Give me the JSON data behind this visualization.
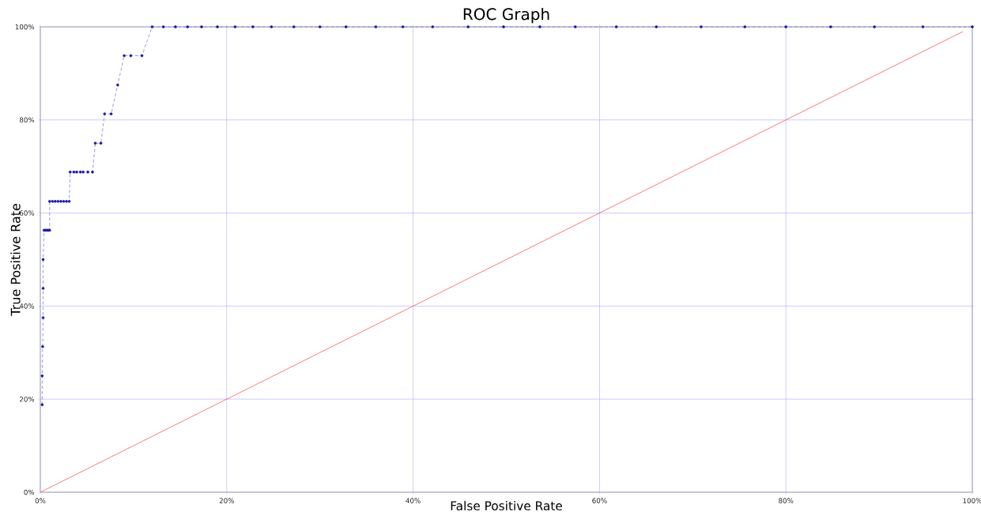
{
  "chart_data": {
    "type": "line",
    "title": "ROC Graph",
    "xlabel": "False Positive Rate",
    "ylabel": "True Positive Rate",
    "xlim": [
      0,
      100
    ],
    "ylim": [
      0,
      100
    ],
    "xticks": [
      {
        "value": 0,
        "label": "0%"
      },
      {
        "value": 20,
        "label": "20%"
      },
      {
        "value": 40,
        "label": "40%"
      },
      {
        "value": 60,
        "label": "60%"
      },
      {
        "value": 80,
        "label": "80%"
      },
      {
        "value": 100,
        "label": "100%"
      }
    ],
    "yticks": [
      {
        "value": 0,
        "label": "0%"
      },
      {
        "value": 20,
        "label": "20%"
      },
      {
        "value": 40,
        "label": "40%"
      },
      {
        "value": 60,
        "label": "60%"
      },
      {
        "value": 80,
        "label": "80%"
      },
      {
        "value": 100,
        "label": "100%"
      }
    ],
    "grid": true,
    "series": [
      {
        "color": "#1a1aa6",
        "marker": "circle",
        "line_style": "dashed",
        "x": [
          0.2,
          0.2,
          0.25,
          0.3,
          0.3,
          0.3,
          0.4,
          0.55,
          0.7,
          0.85,
          1.0,
          1.0,
          1.3,
          1.6,
          1.9,
          2.2,
          2.5,
          2.8,
          3.1,
          3.2,
          3.6,
          3.9,
          4.3,
          4.6,
          5.1,
          5.6,
          5.9,
          6.5,
          6.9,
          7.6,
          8.3,
          9.0,
          9.7,
          10.9,
          12.0,
          13.2,
          14.5,
          15.8,
          17.3,
          19.0,
          20.9,
          22.8,
          24.8,
          27.2,
          30.0,
          32.8,
          36.0,
          38.9,
          42.1,
          45.9,
          49.7,
          53.6,
          57.4,
          61.8,
          66.1,
          70.9,
          75.6,
          80.0,
          84.8,
          89.5,
          94.7,
          100
        ],
        "values": [
          18.8,
          25,
          31.3,
          37.5,
          43.8,
          50,
          56.3,
          56.3,
          56.3,
          56.3,
          56.3,
          62.5,
          62.5,
          62.5,
          62.5,
          62.5,
          62.5,
          62.5,
          62.5,
          68.8,
          68.8,
          68.8,
          68.8,
          68.8,
          68.8,
          68.8,
          75,
          75,
          81.3,
          81.3,
          87.5,
          93.8,
          93.8,
          93.8,
          100,
          100,
          100,
          100,
          100,
          100,
          100,
          100,
          100,
          100,
          100,
          100,
          100,
          100,
          100,
          100,
          100,
          100,
          100,
          100,
          100,
          100,
          100,
          100,
          100,
          100,
          100,
          100
        ]
      },
      {
        "color": "#ff5555",
        "marker": "none",
        "line_style": "solid",
        "x": [
          0,
          99
        ],
        "values": [
          0,
          99
        ]
      }
    ]
  }
}
